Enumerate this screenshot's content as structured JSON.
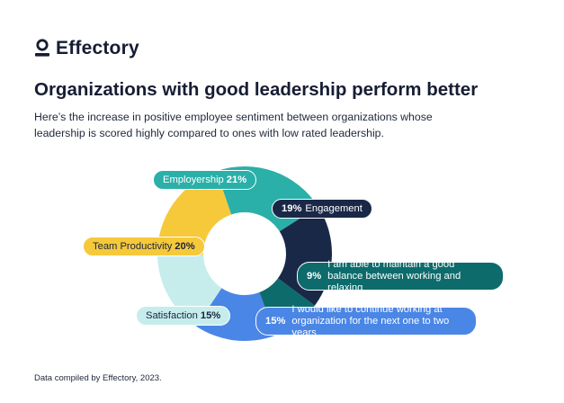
{
  "brand": {
    "name": "Effectory"
  },
  "title": "Organizations with good leadership perform better",
  "subtitle": "Here’s the increase in positive employee sentiment between organizations whose leadership is scored highly compared to ones with low rated leadership.",
  "footnote": "Data compiled by Effectory, 2023.",
  "chart_data": {
    "type": "pie",
    "title": "Organizations with good leadership perform better",
    "unit": "%",
    "slices": [
      {
        "label": "Employership",
        "value": 21,
        "display": "21%",
        "color": "#2ab0a8"
      },
      {
        "label": "Engagement",
        "value": 19,
        "display": "19%",
        "color": "#1a2848"
      },
      {
        "label": "I am able to maintain a good balance between working and relaxing",
        "value": 9,
        "display": "9%",
        "color": "#0d6b6c"
      },
      {
        "label": "I would like to continue working at organization for the next one to two years",
        "value": 15,
        "display": "15%",
        "color": "#4a86e6"
      },
      {
        "label": "Satisfaction",
        "value": 15,
        "display": "15%",
        "color": "#c6edec"
      },
      {
        "label": "Team Productivity",
        "value": 20,
        "display": "20%",
        "color": "#f6c93b"
      }
    ],
    "legend": "labels on slices"
  }
}
